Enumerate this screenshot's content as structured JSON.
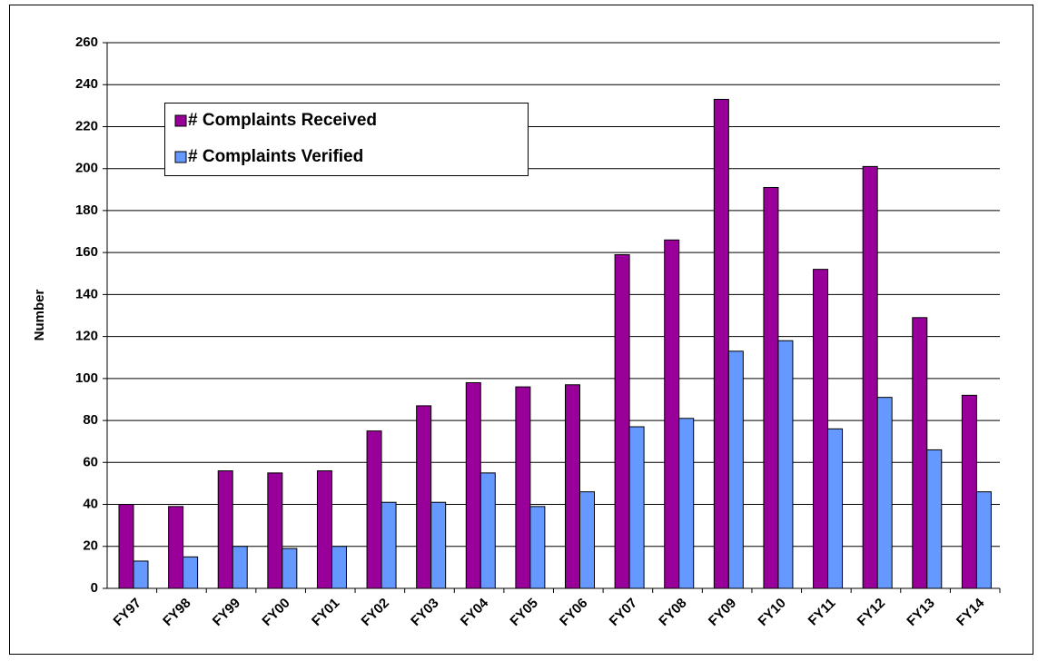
{
  "chart_data": {
    "type": "bar",
    "ylabel": "Number",
    "categories": [
      "FY97",
      "FY98",
      "FY99",
      "FY00",
      "FY01",
      "FY02",
      "FY03",
      "FY04",
      "FY05",
      "FY06",
      "FY07",
      "FY08",
      "FY09",
      "FY10",
      "FY11",
      "FY12",
      "FY13",
      "FY14"
    ],
    "series": [
      {
        "name": "# Complaints Received",
        "color": "#990099",
        "values": [
          40,
          39,
          56,
          55,
          56,
          75,
          87,
          98,
          96,
          97,
          159,
          166,
          233,
          191,
          152,
          201,
          129,
          92
        ]
      },
      {
        "name": "# Complaints Verified",
        "color": "#6699ff",
        "values": [
          13,
          15,
          20,
          19,
          20,
          41,
          41,
          55,
          39,
          46,
          77,
          81,
          113,
          118,
          76,
          91,
          66,
          46
        ]
      }
    ],
    "ylim": [
      0,
      260
    ],
    "yticks": [
      0,
      20,
      40,
      60,
      80,
      100,
      120,
      140,
      160,
      180,
      200,
      220,
      240,
      260
    ],
    "grid": true
  }
}
